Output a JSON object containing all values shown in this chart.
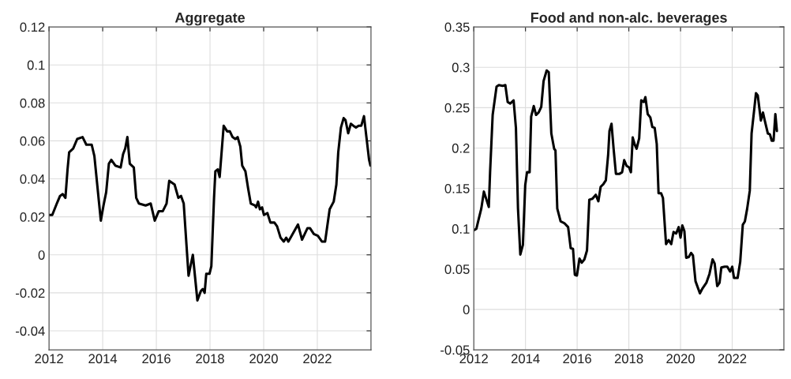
{
  "chart_data": [
    {
      "type": "line",
      "title": "Aggregate",
      "xlim": [
        2012,
        2024
      ],
      "xticks": [
        2012,
        2014,
        2016,
        2018,
        2020,
        2022
      ],
      "ylim": [
        -0.05,
        0.12
      ],
      "yticks": [
        -0.04,
        -0.02,
        0,
        0.02,
        0.04,
        0.06,
        0.08,
        0.1,
        0.12
      ],
      "grid": true,
      "series": [
        {
          "color": "#000000",
          "x": [
            2012.0,
            2012.12,
            2012.29,
            2012.41,
            2012.51,
            2012.61,
            2012.69,
            2012.75,
            2012.9,
            2013.05,
            2013.25,
            2013.39,
            2013.59,
            2013.69,
            2013.93,
            2014.03,
            2014.13,
            2014.23,
            2014.32,
            2014.47,
            2014.67,
            2014.76,
            2014.84,
            2014.92,
            2015.01,
            2015.16,
            2015.25,
            2015.35,
            2015.6,
            2015.79,
            2015.94,
            2016.09,
            2016.24,
            2016.38,
            2016.48,
            2016.68,
            2016.82,
            2016.92,
            2017.02,
            2017.1,
            2017.2,
            2017.36,
            2017.53,
            2017.66,
            2017.73,
            2017.8,
            2017.86,
            2017.98,
            2018.05,
            2018.15,
            2018.2,
            2018.29,
            2018.36,
            2018.51,
            2018.64,
            2018.74,
            2018.84,
            2018.94,
            2019.03,
            2019.13,
            2019.2,
            2019.32,
            2019.42,
            2019.52,
            2019.67,
            2019.72,
            2019.79,
            2019.86,
            2019.94,
            2020.01,
            2020.14,
            2020.25,
            2020.4,
            2020.5,
            2020.63,
            2020.75,
            2020.84,
            2020.92,
            2021.04,
            2021.28,
            2021.43,
            2021.53,
            2021.63,
            2021.73,
            2021.87,
            2022.02,
            2022.17,
            2022.29,
            2022.46,
            2022.61,
            2022.71,
            2022.78,
            2022.88,
            2022.98,
            2023.05,
            2023.15,
            2023.25,
            2023.34,
            2023.44,
            2023.54,
            2023.64,
            2023.74,
            2023.83,
            2023.93,
            2023.98
          ],
          "values": [
            0.021,
            0.021,
            0.027,
            0.031,
            0.032,
            0.03,
            0.045,
            0.054,
            0.056,
            0.061,
            0.062,
            0.058,
            0.058,
            0.052,
            0.018,
            0.026,
            0.033,
            0.048,
            0.05,
            0.047,
            0.046,
            0.053,
            0.056,
            0.062,
            0.048,
            0.046,
            0.03,
            0.027,
            0.026,
            0.027,
            0.018,
            0.023,
            0.023,
            0.027,
            0.039,
            0.037,
            0.03,
            0.031,
            0.027,
            0.01,
            -0.011,
            0.0,
            -0.024,
            -0.019,
            -0.018,
            -0.02,
            -0.01,
            -0.01,
            -0.006,
            0.03,
            0.044,
            0.045,
            0.041,
            0.068,
            0.065,
            0.065,
            0.062,
            0.061,
            0.062,
            0.057,
            0.047,
            0.044,
            0.035,
            0.027,
            0.026,
            0.025,
            0.028,
            0.024,
            0.025,
            0.021,
            0.022,
            0.017,
            0.017,
            0.015,
            0.009,
            0.007,
            0.009,
            0.007,
            0.01,
            0.016,
            0.008,
            0.011,
            0.014,
            0.014,
            0.011,
            0.01,
            0.007,
            0.007,
            0.024,
            0.028,
            0.037,
            0.054,
            0.067,
            0.072,
            0.071,
            0.064,
            0.069,
            0.068,
            0.067,
            0.068,
            0.068,
            0.073,
            0.062,
            0.05,
            0.047
          ]
        }
      ]
    },
    {
      "type": "line",
      "title": "Food and non-alc. beverages",
      "xlim": [
        2012,
        2024
      ],
      "xticks": [
        2012,
        2014,
        2016,
        2018,
        2020,
        2022
      ],
      "ylim": [
        -0.05,
        0.35
      ],
      "yticks": [
        -0.05,
        0,
        0.05,
        0.1,
        0.15,
        0.2,
        0.25,
        0.3,
        0.35
      ],
      "grid": true,
      "series": [
        {
          "color": "#000000",
          "x": [
            2012.0,
            2012.1,
            2012.19,
            2012.29,
            2012.39,
            2012.49,
            2012.58,
            2012.63,
            2012.73,
            2012.88,
            2012.97,
            2013.12,
            2013.22,
            2013.31,
            2013.41,
            2013.54,
            2013.63,
            2013.71,
            2013.8,
            2013.9,
            2013.99,
            2014.06,
            2014.16,
            2014.22,
            2014.32,
            2014.41,
            2014.51,
            2014.61,
            2014.7,
            2014.82,
            2014.9,
            2015.0,
            2015.11,
            2015.16,
            2015.23,
            2015.36,
            2015.5,
            2015.65,
            2015.75,
            2015.84,
            2015.91,
            2015.99,
            2016.09,
            2016.18,
            2016.28,
            2016.38,
            2016.47,
            2016.59,
            2016.72,
            2016.82,
            2016.91,
            2017.01,
            2017.11,
            2017.2,
            2017.25,
            2017.33,
            2017.41,
            2017.5,
            2017.64,
            2017.74,
            2017.82,
            2017.91,
            2018.01,
            2018.08,
            2018.15,
            2018.23,
            2018.3,
            2018.4,
            2018.48,
            2018.58,
            2018.64,
            2018.73,
            2018.83,
            2018.91,
            2019.0,
            2019.08,
            2019.15,
            2019.25,
            2019.32,
            2019.44,
            2019.54,
            2019.64,
            2019.73,
            2019.83,
            2019.93,
            2020.0,
            2020.07,
            2020.15,
            2020.22,
            2020.32,
            2020.41,
            2020.48,
            2020.58,
            2020.75,
            2020.85,
            2021.0,
            2021.12,
            2021.24,
            2021.32,
            2021.42,
            2021.51,
            2021.58,
            2021.71,
            2021.81,
            2021.92,
            2022.0,
            2022.07,
            2022.21,
            2022.31,
            2022.41,
            2022.49,
            2022.58,
            2022.68,
            2022.75,
            2022.85,
            2022.92,
            2022.99,
            2023.11,
            2023.19,
            2023.26,
            2023.38,
            2023.46,
            2023.53,
            2023.6,
            2023.67,
            2023.73
          ],
          "values": [
            0.098,
            0.1,
            0.112,
            0.125,
            0.146,
            0.136,
            0.127,
            0.17,
            0.241,
            0.276,
            0.278,
            0.277,
            0.278,
            0.257,
            0.255,
            0.259,
            0.225,
            0.125,
            0.068,
            0.08,
            0.154,
            0.17,
            0.17,
            0.239,
            0.252,
            0.241,
            0.244,
            0.251,
            0.283,
            0.296,
            0.294,
            0.218,
            0.199,
            0.197,
            0.125,
            0.109,
            0.107,
            0.102,
            0.076,
            0.075,
            0.043,
            0.042,
            0.063,
            0.058,
            0.062,
            0.073,
            0.136,
            0.137,
            0.142,
            0.134,
            0.152,
            0.155,
            0.16,
            0.192,
            0.221,
            0.23,
            0.199,
            0.168,
            0.168,
            0.17,
            0.185,
            0.178,
            0.176,
            0.17,
            0.213,
            0.204,
            0.199,
            0.212,
            0.259,
            0.257,
            0.263,
            0.242,
            0.238,
            0.226,
            0.225,
            0.205,
            0.144,
            0.144,
            0.138,
            0.081,
            0.086,
            0.081,
            0.096,
            0.094,
            0.102,
            0.089,
            0.104,
            0.097,
            0.064,
            0.065,
            0.07,
            0.067,
            0.035,
            0.02,
            0.026,
            0.033,
            0.044,
            0.062,
            0.057,
            0.029,
            0.033,
            0.052,
            0.053,
            0.053,
            0.047,
            0.053,
            0.039,
            0.039,
            0.059,
            0.105,
            0.109,
            0.125,
            0.147,
            0.218,
            0.247,
            0.268,
            0.265,
            0.234,
            0.244,
            0.234,
            0.218,
            0.217,
            0.209,
            0.209,
            0.242,
            0.221
          ]
        }
      ]
    }
  ]
}
